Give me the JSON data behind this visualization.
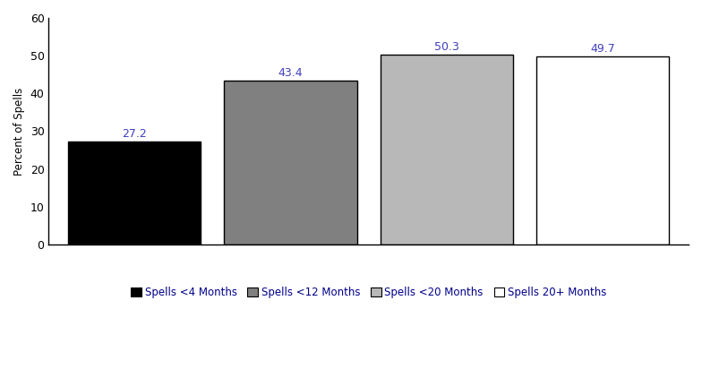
{
  "categories": [
    "Spells <4 Months",
    "Spells <12 Months",
    "Spells <20 Months",
    "Spells 20+ Months"
  ],
  "values": [
    27.2,
    43.4,
    50.3,
    49.7
  ],
  "bar_colors": [
    "#000000",
    "#808080",
    "#b8b8b8",
    "#ffffff"
  ],
  "bar_edgecolors": [
    "#000000",
    "#000000",
    "#000000",
    "#000000"
  ],
  "label_values": [
    "27.2",
    "43.4",
    "50.3",
    "49.7"
  ],
  "label_color": "#4040c0",
  "ylabel": "Percent of Spells",
  "ylim": [
    0,
    60
  ],
  "yticks": [
    0,
    10,
    20,
    30,
    40,
    50,
    60
  ],
  "legend_labels": [
    "Spells <4 Months",
    "Spells <12 Months",
    "Spells <20 Months",
    "Spells 20+ Months"
  ],
  "legend_colors": [
    "#000000",
    "#808080",
    "#b8b8b8",
    "#ffffff"
  ],
  "background_color": "#ffffff",
  "bar_width": 0.85,
  "label_fontsize": 9,
  "ylabel_fontsize": 8.5,
  "tick_fontsize": 9,
  "legend_fontsize": 8.5
}
